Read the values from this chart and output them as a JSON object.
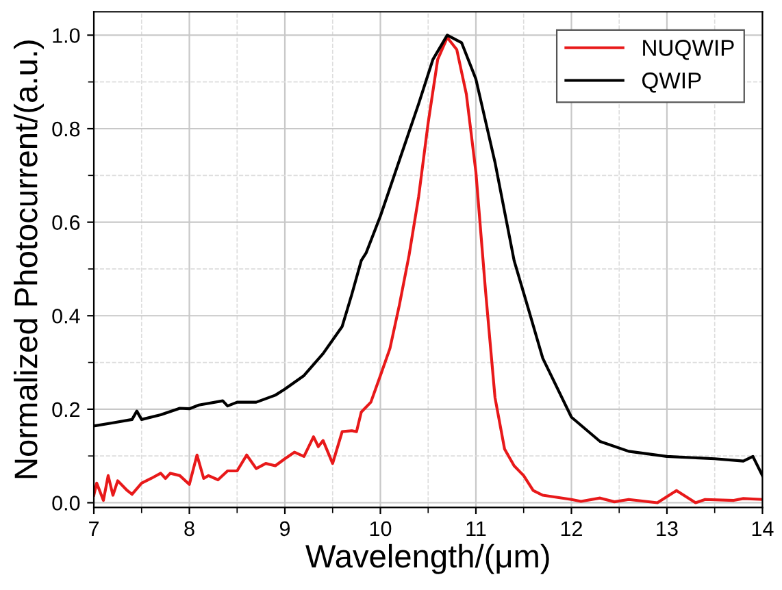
{
  "chart_data": {
    "type": "line",
    "xlabel": "Wavelength/(μm)",
    "ylabel": "Normalized Photocurrent/(a.u.)",
    "xlim": [
      7,
      14
    ],
    "ylim": [
      -0.01,
      1.05
    ],
    "xticks": [
      7,
      8,
      9,
      10,
      11,
      12,
      13,
      14
    ],
    "yticks": [
      {
        "value": 0,
        "label": "0.0"
      },
      0.2,
      0.4,
      0.6,
      0.8,
      {
        "value": 1,
        "label": "1.0"
      }
    ],
    "grid": true,
    "legend": "top right",
    "line_style": "solid",
    "marker": "none",
    "series": [
      {
        "name": "NUQWIP",
        "color": "#e8191a",
        "x": [
          7.0,
          7.03,
          7.1,
          7.15,
          7.2,
          7.25,
          7.35,
          7.4,
          7.5,
          7.6,
          7.7,
          7.75,
          7.8,
          7.9,
          8.0,
          8.08,
          8.15,
          8.2,
          8.3,
          8.4,
          8.5,
          8.6,
          8.7,
          8.8,
          8.9,
          9.0,
          9.1,
          9.2,
          9.3,
          9.35,
          9.4,
          9.5,
          9.6,
          9.7,
          9.75,
          9.8,
          9.9,
          10.0,
          10.1,
          10.2,
          10.3,
          10.4,
          10.5,
          10.6,
          10.7,
          10.8,
          10.9,
          11.0,
          11.1,
          11.2,
          11.3,
          11.4,
          11.5,
          11.6,
          11.7,
          12.0,
          12.1,
          12.3,
          12.45,
          12.6,
          12.9,
          13.1,
          13.3,
          13.4,
          13.7,
          13.8,
          14.0
        ],
        "values": [
          0.016,
          0.042,
          0.005,
          0.058,
          0.016,
          0.047,
          0.026,
          0.018,
          0.042,
          0.052,
          0.063,
          0.052,
          0.063,
          0.058,
          0.039,
          0.102,
          0.052,
          0.058,
          0.049,
          0.068,
          0.068,
          0.102,
          0.073,
          0.084,
          0.079,
          0.094,
          0.108,
          0.099,
          0.141,
          0.12,
          0.133,
          0.084,
          0.152,
          0.154,
          0.152,
          0.194,
          0.215,
          0.272,
          0.33,
          0.424,
          0.529,
          0.654,
          0.812,
          0.948,
          0.995,
          0.969,
          0.874,
          0.707,
          0.455,
          0.225,
          0.115,
          0.079,
          0.058,
          0.026,
          0.016,
          0.007,
          0.003,
          0.01,
          0.002,
          0.007,
          0.0,
          0.026,
          0.0,
          0.007,
          0.005,
          0.009,
          0.007
        ]
      },
      {
        "name": "QWIP",
        "color": "#000000",
        "x": [
          7.0,
          7.2,
          7.4,
          7.45,
          7.5,
          7.7,
          7.9,
          8.0,
          8.1,
          8.35,
          8.4,
          8.5,
          8.7,
          8.9,
          9.0,
          9.2,
          9.4,
          9.6,
          9.7,
          9.8,
          9.85,
          10.0,
          10.2,
          10.4,
          10.55,
          10.7,
          10.85,
          11.0,
          11.2,
          11.4,
          11.55,
          11.7,
          12.0,
          12.3,
          12.6,
          13.0,
          13.5,
          13.8,
          13.9,
          14.0
        ],
        "values": [
          0.164,
          0.171,
          0.178,
          0.196,
          0.178,
          0.188,
          0.202,
          0.201,
          0.209,
          0.218,
          0.207,
          0.215,
          0.215,
          0.23,
          0.243,
          0.272,
          0.319,
          0.377,
          0.445,
          0.518,
          0.534,
          0.613,
          0.733,
          0.853,
          0.948,
          1.0,
          0.984,
          0.906,
          0.728,
          0.518,
          0.414,
          0.309,
          0.183,
          0.131,
          0.11,
          0.099,
          0.094,
          0.089,
          0.099,
          0.058
        ]
      }
    ]
  }
}
